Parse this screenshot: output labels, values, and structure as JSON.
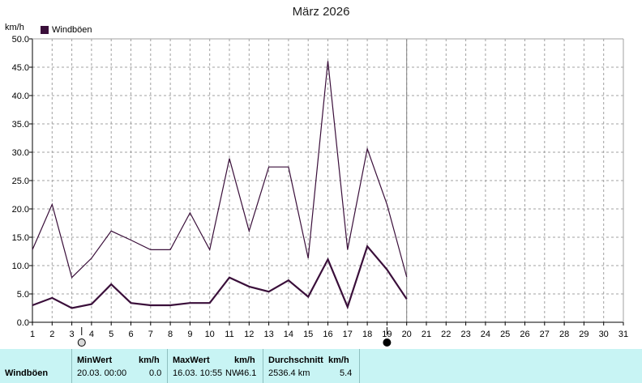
{
  "title": "März 2026",
  "unit": "km/h",
  "legend_label": "Windböen",
  "colors": {
    "series": "#3a0f3a",
    "grid": "#a0a0a0",
    "stats_bg": "#c8f4f4"
  },
  "chart_data": {
    "type": "line",
    "title": "März 2026",
    "ylabel": "km/h",
    "ylim": [
      0,
      50
    ],
    "yticks": [
      "0.0",
      "5.0",
      "10.0",
      "15.0",
      "20.0",
      "25.0",
      "30.0",
      "35.0",
      "40.0",
      "45.0",
      "50.0"
    ],
    "xlim": [
      1,
      31
    ],
    "xticks": [
      "1",
      "2",
      "3",
      "4",
      "5",
      "6",
      "7",
      "8",
      "9",
      "10",
      "11",
      "12",
      "13",
      "14",
      "15",
      "16",
      "17",
      "18",
      "19",
      "20",
      "21",
      "22",
      "23",
      "24",
      "25",
      "26",
      "27",
      "28",
      "29",
      "30",
      "31"
    ],
    "grid": true,
    "legend_position": "top-left",
    "series": [
      {
        "name": "Windböen",
        "x": [
          1,
          2,
          3,
          4,
          5,
          6,
          7,
          8,
          9,
          10,
          11,
          12,
          13,
          14,
          15,
          16,
          17,
          18,
          19,
          20
        ],
        "values": [
          12.8,
          20.8,
          7.9,
          11.3,
          16.1,
          14.5,
          12.8,
          12.8,
          19.3,
          12.8,
          28.9,
          16.1,
          27.4,
          27.4,
          11.3,
          46.1,
          12.8,
          30.6,
          20.8,
          8.0
        ]
      },
      {
        "name": "",
        "x": [
          1,
          2,
          3,
          4,
          5,
          6,
          7,
          8,
          9,
          10,
          11,
          12,
          13,
          14,
          15,
          16,
          17,
          18,
          19,
          20
        ],
        "values": [
          3.0,
          4.3,
          2.5,
          3.2,
          6.7,
          3.4,
          3.0,
          3.0,
          3.4,
          3.4,
          7.9,
          6.3,
          5.4,
          7.4,
          4.5,
          11.1,
          2.7,
          13.4,
          9.3,
          4.1
        ]
      }
    ]
  },
  "stats": {
    "row_label": "Windböen",
    "min": {
      "header": "MinWert",
      "unit": "km/h",
      "date": "20.03.  00:00",
      "value": "0.0"
    },
    "max": {
      "header": "MaxWert",
      "unit": "km/h",
      "date": "16.03.  10:55",
      "dir": "NW",
      "value": "46.1"
    },
    "avg": {
      "header": "Durchschnitt",
      "unit": "km/h",
      "total": "2536.4 km",
      "value": "5.4"
    }
  }
}
